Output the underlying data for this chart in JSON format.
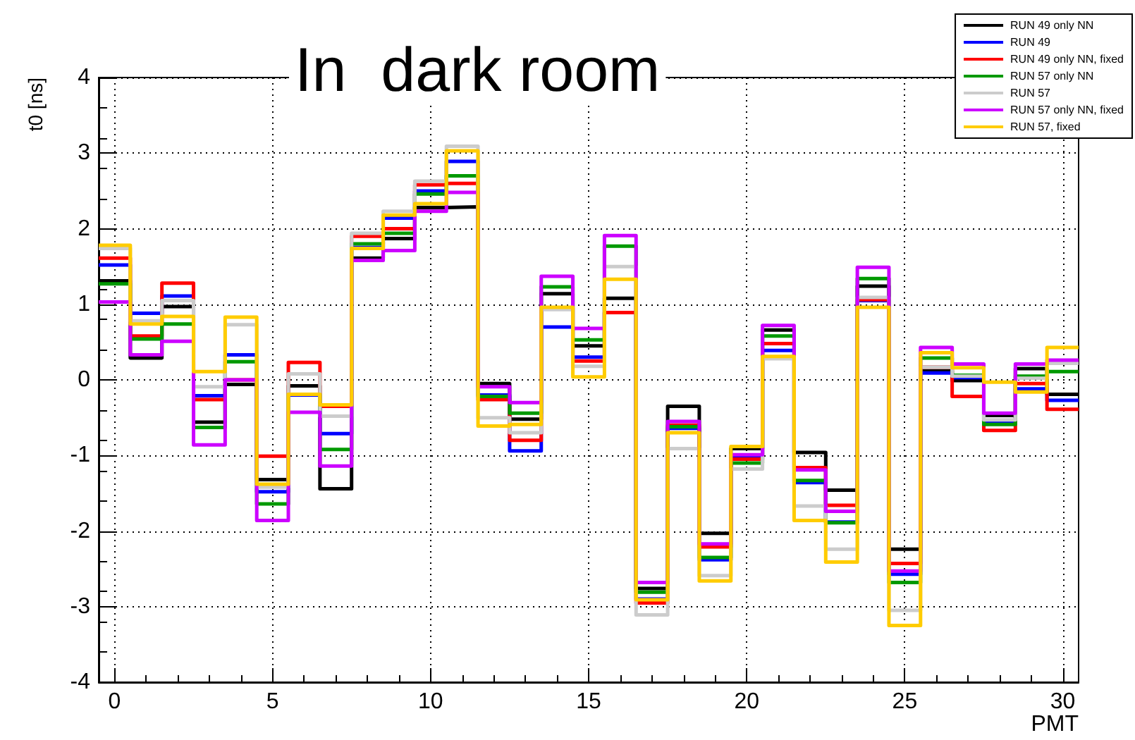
{
  "chart_data": {
    "type": "histogram",
    "title": "In  dark room",
    "xlabel": "PMT",
    "ylabel": "t0 [ns]",
    "bins": [
      -0.5,
      0.5,
      1.5,
      2.5,
      3.5,
      4.5,
      5.5,
      6.5,
      7.5,
      8.5,
      9.5,
      10.5,
      11.5,
      12.5,
      13.5,
      14.5,
      15.5,
      16.5,
      17.5,
      18.5,
      19.5,
      20.5,
      21.5,
      22.5,
      23.5,
      24.5,
      25.5,
      26.5,
      27.5,
      28.5,
      29.5,
      30.5
    ],
    "series": [
      {
        "name": "RUN 49 only NN",
        "color": "#000000",
        "values": [
          1.31,
          0.29,
          0.97,
          -0.56,
          -0.06,
          -1.32,
          -0.08,
          -1.44,
          1.61,
          1.87,
          2.28,
          2.29,
          -0.05,
          -0.52,
          1.14,
          0.45,
          1.08,
          -2.76,
          -0.35,
          -2.03,
          -0.91,
          0.66,
          -0.96,
          -1.46,
          1.24,
          -2.24,
          0.12,
          -0.01,
          -0.47,
          0.15,
          -0.19
        ]
      },
      {
        "name": "RUN 49",
        "color": "#0000ff",
        "values": [
          1.52,
          0.88,
          1.11,
          -0.21,
          0.33,
          -1.48,
          -0.2,
          -0.71,
          1.75,
          2.14,
          2.5,
          2.89,
          -0.2,
          -0.94,
          0.7,
          0.3,
          0.89,
          -2.9,
          -0.64,
          -2.38,
          -1.02,
          0.39,
          -1.36,
          -1.88,
          1.05,
          -2.57,
          0.09,
          0.03,
          -0.55,
          -0.12,
          -0.27
        ]
      },
      {
        "name": "RUN 49 only NN, fixed",
        "color": "#ff0000",
        "values": [
          1.61,
          0.58,
          1.28,
          -0.26,
          0.0,
          -1.01,
          0.23,
          -0.35,
          1.9,
          2.0,
          2.58,
          2.6,
          -0.26,
          -0.8,
          0.95,
          0.25,
          0.89,
          -2.95,
          -0.6,
          -2.21,
          -1.05,
          0.48,
          -1.16,
          -1.66,
          1.06,
          -2.43,
          0.17,
          -0.22,
          -0.67,
          -0.05,
          -0.39
        ]
      },
      {
        "name": "RUN 57 only NN",
        "color": "#009900",
        "values": [
          1.27,
          0.54,
          0.74,
          -0.63,
          0.24,
          -1.64,
          -0.19,
          -0.92,
          1.8,
          1.94,
          2.46,
          2.7,
          -0.22,
          -0.44,
          1.23,
          0.53,
          1.77,
          -2.81,
          -0.62,
          -2.35,
          -1.1,
          0.58,
          -1.33,
          -1.89,
          1.34,
          -2.68,
          0.29,
          0.06,
          -0.59,
          0.05,
          0.11
        ]
      },
      {
        "name": "RUN 57",
        "color": "#cccccc",
        "values": [
          1.74,
          0.78,
          1.05,
          -0.09,
          0.73,
          -1.42,
          0.08,
          -0.48,
          1.94,
          2.23,
          2.63,
          3.09,
          -0.5,
          -0.7,
          0.93,
          0.18,
          1.5,
          -3.11,
          -0.91,
          -2.59,
          -1.18,
          0.28,
          -1.67,
          -2.24,
          1.09,
          -3.05,
          0.17,
          0.05,
          -0.53,
          0.02,
          0.22
        ]
      },
      {
        "name": "RUN 57 only NN, fixed",
        "color": "#cc00ff",
        "values": [
          1.03,
          0.33,
          0.51,
          -0.86,
          0.0,
          -1.86,
          -0.43,
          -1.14,
          1.58,
          1.71,
          2.23,
          2.48,
          -0.09,
          -0.3,
          1.37,
          0.68,
          1.91,
          -2.68,
          -0.55,
          -2.17,
          -0.99,
          0.72,
          -1.19,
          -1.74,
          1.49,
          -2.53,
          0.43,
          0.21,
          -0.44,
          0.21,
          0.26
        ]
      },
      {
        "name": "RUN 57, fixed",
        "color": "#ffcc00",
        "values": [
          1.78,
          0.74,
          0.84,
          0.11,
          0.83,
          -1.38,
          -0.19,
          -0.33,
          1.74,
          2.18,
          2.33,
          3.03,
          -0.61,
          -0.59,
          0.96,
          0.04,
          1.33,
          -2.91,
          -0.7,
          -2.66,
          -0.88,
          0.31,
          -1.86,
          -2.41,
          0.96,
          -3.25,
          0.36,
          0.16,
          -0.03,
          -0.16,
          0.43
        ]
      }
    ],
    "xlim": [
      -0.5,
      30.5
    ],
    "ylim": [
      -4,
      4
    ],
    "xticks": [
      0,
      5,
      10,
      15,
      20,
      25,
      30
    ],
    "yticks": [
      -4,
      -3,
      -2,
      -1,
      0,
      1,
      2,
      3,
      4
    ],
    "grid": true,
    "legend": "top right"
  }
}
